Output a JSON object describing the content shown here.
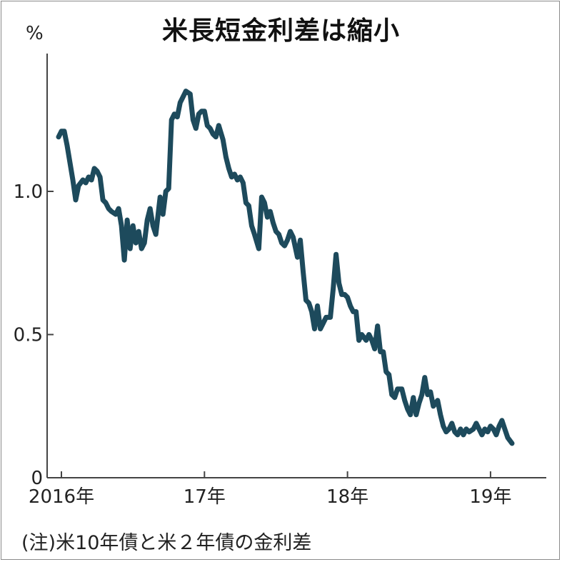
{
  "chart_data": {
    "type": "line",
    "title": "米長短金利差は縮小",
    "unit_label": "%",
    "note": "(注)米10年債と米２年債の金利差",
    "ylim": [
      0,
      1.5
    ],
    "xlim": [
      2015.98,
      2019.28
    ],
    "yticks": [
      {
        "value": 0,
        "label": "0"
      },
      {
        "value": 0.5,
        "label": "0.5"
      },
      {
        "value": 1.0,
        "label": "1.0"
      }
    ],
    "xticks": [
      {
        "value": 2016.0,
        "label": "2016年"
      },
      {
        "value": 2017.0,
        "label": "17年"
      },
      {
        "value": 2018.0,
        "label": "18年"
      },
      {
        "value": 2019.0,
        "label": "19年"
      }
    ],
    "color": "#1d4a5c",
    "series": [
      {
        "values": [
          [
            2015.98,
            1.19
          ],
          [
            2016.0,
            1.21
          ],
          [
            2016.02,
            1.21
          ],
          [
            2016.04,
            1.16
          ],
          [
            2016.06,
            1.1
          ],
          [
            2016.08,
            1.04
          ],
          [
            2016.1,
            0.97
          ],
          [
            2016.12,
            1.02
          ],
          [
            2016.15,
            1.04
          ],
          [
            2016.17,
            1.03
          ],
          [
            2016.19,
            1.05
          ],
          [
            2016.21,
            1.04
          ],
          [
            2016.23,
            1.08
          ],
          [
            2016.25,
            1.07
          ],
          [
            2016.27,
            1.05
          ],
          [
            2016.29,
            0.97
          ],
          [
            2016.31,
            0.96
          ],
          [
            2016.33,
            0.94
          ],
          [
            2016.35,
            0.93
          ],
          [
            2016.38,
            0.92
          ],
          [
            2016.4,
            0.94
          ],
          [
            2016.42,
            0.88
          ],
          [
            2016.44,
            0.76
          ],
          [
            2016.46,
            0.9
          ],
          [
            2016.48,
            0.8
          ],
          [
            2016.5,
            0.88
          ],
          [
            2016.52,
            0.82
          ],
          [
            2016.54,
            0.86
          ],
          [
            2016.56,
            0.8
          ],
          [
            2016.58,
            0.82
          ],
          [
            2016.6,
            0.9
          ],
          [
            2016.62,
            0.94
          ],
          [
            2016.64,
            0.88
          ],
          [
            2016.66,
            0.85
          ],
          [
            2016.69,
            0.98
          ],
          [
            2016.71,
            0.92
          ],
          [
            2016.73,
            1.0
          ],
          [
            2016.75,
            1.01
          ],
          [
            2016.77,
            1.25
          ],
          [
            2016.79,
            1.27
          ],
          [
            2016.81,
            1.26
          ],
          [
            2016.83,
            1.31
          ],
          [
            2016.85,
            1.33
          ],
          [
            2016.87,
            1.35
          ],
          [
            2016.9,
            1.34
          ],
          [
            2016.92,
            1.25
          ],
          [
            2016.94,
            1.22
          ],
          [
            2016.96,
            1.27
          ],
          [
            2016.98,
            1.28
          ],
          [
            2017.0,
            1.28
          ],
          [
            2017.02,
            1.23
          ],
          [
            2017.04,
            1.22
          ],
          [
            2017.06,
            1.2
          ],
          [
            2017.08,
            1.19
          ],
          [
            2017.1,
            1.23
          ],
          [
            2017.13,
            1.18
          ],
          [
            2017.15,
            1.12
          ],
          [
            2017.17,
            1.08
          ],
          [
            2017.19,
            1.05
          ],
          [
            2017.21,
            1.06
          ],
          [
            2017.23,
            1.04
          ],
          [
            2017.25,
            1.05
          ],
          [
            2017.27,
            1.03
          ],
          [
            2017.29,
            0.96
          ],
          [
            2017.31,
            0.95
          ],
          [
            2017.33,
            0.88
          ],
          [
            2017.35,
            0.85
          ],
          [
            2017.38,
            0.8
          ],
          [
            2017.4,
            0.98
          ],
          [
            2017.42,
            0.96
          ],
          [
            2017.44,
            0.91
          ],
          [
            2017.46,
            0.93
          ],
          [
            2017.48,
            0.89
          ],
          [
            2017.5,
            0.86
          ],
          [
            2017.52,
            0.85
          ],
          [
            2017.54,
            0.82
          ],
          [
            2017.56,
            0.81
          ],
          [
            2017.58,
            0.83
          ],
          [
            2017.6,
            0.86
          ],
          [
            2017.62,
            0.84
          ],
          [
            2017.65,
            0.77
          ],
          [
            2017.67,
            0.83
          ],
          [
            2017.69,
            0.72
          ],
          [
            2017.71,
            0.62
          ],
          [
            2017.73,
            0.61
          ],
          [
            2017.75,
            0.58
          ],
          [
            2017.77,
            0.52
          ],
          [
            2017.79,
            0.6
          ],
          [
            2017.81,
            0.52
          ],
          [
            2017.83,
            0.54
          ],
          [
            2017.85,
            0.56
          ],
          [
            2017.88,
            0.56
          ],
          [
            2017.9,
            0.66
          ],
          [
            2017.92,
            0.78
          ],
          [
            2017.94,
            0.68
          ],
          [
            2017.96,
            0.64
          ],
          [
            2017.98,
            0.64
          ],
          [
            2018.0,
            0.63
          ],
          [
            2018.02,
            0.6
          ],
          [
            2018.04,
            0.58
          ],
          [
            2018.06,
            0.58
          ],
          [
            2018.08,
            0.48
          ],
          [
            2018.1,
            0.5
          ],
          [
            2018.13,
            0.48
          ],
          [
            2018.15,
            0.5
          ],
          [
            2018.17,
            0.48
          ],
          [
            2018.19,
            0.45
          ],
          [
            2018.21,
            0.53
          ],
          [
            2018.23,
            0.44
          ],
          [
            2018.25,
            0.44
          ],
          [
            2018.27,
            0.37
          ],
          [
            2018.29,
            0.36
          ],
          [
            2018.31,
            0.29
          ],
          [
            2018.33,
            0.28
          ],
          [
            2018.35,
            0.31
          ],
          [
            2018.38,
            0.31
          ],
          [
            2018.4,
            0.27
          ],
          [
            2018.42,
            0.24
          ],
          [
            2018.44,
            0.22
          ],
          [
            2018.46,
            0.28
          ],
          [
            2018.48,
            0.22
          ],
          [
            2018.5,
            0.26
          ],
          [
            2018.52,
            0.29
          ],
          [
            2018.54,
            0.35
          ],
          [
            2018.56,
            0.29
          ],
          [
            2018.58,
            0.3
          ],
          [
            2018.6,
            0.25
          ],
          [
            2018.63,
            0.27
          ],
          [
            2018.65,
            0.22
          ],
          [
            2018.67,
            0.18
          ],
          [
            2018.69,
            0.16
          ],
          [
            2018.71,
            0.17
          ],
          [
            2018.73,
            0.19
          ],
          [
            2018.75,
            0.16
          ],
          [
            2018.77,
            0.15
          ],
          [
            2018.79,
            0.17
          ],
          [
            2018.81,
            0.15
          ],
          [
            2018.83,
            0.17
          ],
          [
            2018.85,
            0.16
          ],
          [
            2018.88,
            0.17
          ],
          [
            2018.9,
            0.19
          ],
          [
            2018.92,
            0.17
          ],
          [
            2018.94,
            0.15
          ],
          [
            2018.96,
            0.17
          ],
          [
            2018.98,
            0.16
          ],
          [
            2019.0,
            0.18
          ],
          [
            2019.02,
            0.17
          ],
          [
            2019.04,
            0.15
          ],
          [
            2019.06,
            0.18
          ],
          [
            2019.08,
            0.2
          ],
          [
            2019.1,
            0.17
          ],
          [
            2019.12,
            0.14
          ],
          [
            2019.15,
            0.12
          ]
        ]
      }
    ]
  }
}
